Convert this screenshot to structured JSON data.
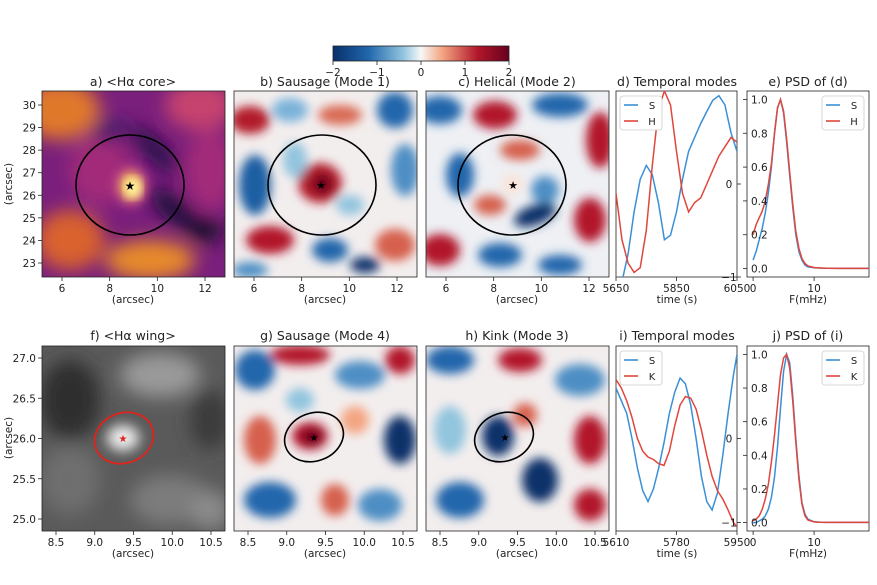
{
  "colorbar": {
    "ticks": [
      "−2",
      "−1",
      "0",
      "1",
      "2"
    ],
    "range": [
      -2,
      2
    ],
    "colors": [
      "#08306b",
      "#2166ac",
      "#92c5de",
      "#f7f7f7",
      "#f4a582",
      "#b2182b",
      "#67001f"
    ]
  },
  "row1": {
    "panels": [
      {
        "title": "a) <Hα core>",
        "kind": "core"
      },
      {
        "title": "b) Sausage (Mode 1)",
        "kind": "mode"
      },
      {
        "title": "c) Helical (Mode 2)",
        "kind": "mode"
      }
    ],
    "xticks": [
      "6",
      "8",
      "10",
      "12"
    ],
    "xlabel": "(arcsec)",
    "yticks": [
      "30",
      "29",
      "28",
      "27",
      "26",
      "25",
      "24",
      "23"
    ],
    "ylabel": "(arcsec)",
    "temporal": {
      "title": "d) Temporal modes",
      "xticks": [
        "5650",
        "5850",
        "6050"
      ],
      "xlabel": "time (s)",
      "yticks": [
        "0",
        "−1"
      ],
      "legend": [
        "S",
        "H"
      ]
    },
    "psd": {
      "title": "e) PSD of (d)",
      "xticks": [
        "0",
        "10"
      ],
      "xlabel": "F(mHz)",
      "yticks": [
        "1.0",
        "0.8",
        "0.6",
        "0.4",
        "0.2",
        "0.0"
      ],
      "legend": [
        "S",
        "H"
      ]
    }
  },
  "row2": {
    "panels": [
      {
        "title": "f) <Hα wing>",
        "kind": "wing"
      },
      {
        "title": "g) Sausage (Mode 4)",
        "kind": "mode"
      },
      {
        "title": "h) Kink (Mode 3)",
        "kind": "mode"
      }
    ],
    "xticks": [
      "8.5",
      "9.0",
      "9.5",
      "10.0",
      "10.5"
    ],
    "xlabel": "(arcsec)",
    "yticks": [
      "27.0",
      "26.5",
      "26.0",
      "25.5",
      "25.0"
    ],
    "ylabel": "(arcsec)",
    "temporal": {
      "title": "i) Temporal modes",
      "xticks": [
        "5610",
        "5780",
        "5950"
      ],
      "xlabel": "time (s)",
      "yticks": [
        "0",
        "−1"
      ],
      "legend": [
        "S",
        "K"
      ]
    },
    "psd": {
      "title": "j) PSD of (i)",
      "xticks": [
        "0",
        "10"
      ],
      "xlabel": "F(mHz)",
      "yticks": [
        "1.0",
        "0.8",
        "0.6",
        "0.4",
        "0.2",
        "0.0"
      ],
      "legend": [
        "S",
        "K"
      ]
    }
  },
  "series_colors": {
    "blue": "#3b8fd6",
    "red": "#e0463c"
  },
  "chart_data": [
    {
      "type": "line",
      "title": "d) Temporal modes",
      "xlabel": "time (s)",
      "xlim": [
        5650,
        6050
      ],
      "ylim": [
        -1,
        1
      ],
      "series": [
        {
          "name": "S",
          "x": [
            5650,
            5670,
            5690,
            5710,
            5730,
            5750,
            5770,
            5790,
            5810,
            5830,
            5850,
            5870,
            5890,
            5910,
            5930,
            5950,
            5970,
            5990,
            6010,
            6030,
            6050
          ],
          "values": [
            -1.0,
            -1.05,
            -0.75,
            -0.3,
            0.05,
            0.2,
            0.1,
            -0.2,
            -0.6,
            -0.55,
            -0.3,
            0.05,
            0.35,
            0.5,
            0.65,
            0.78,
            0.9,
            0.95,
            0.85,
            0.55,
            0.35
          ]
        },
        {
          "name": "H",
          "x": [
            5650,
            5670,
            5690,
            5710,
            5730,
            5750,
            5770,
            5790,
            5810,
            5830,
            5850,
            5870,
            5890,
            5910,
            5930,
            5950,
            5970,
            5990,
            6010,
            6030,
            6050
          ],
          "values": [
            -0.1,
            -0.6,
            -0.85,
            -0.95,
            -0.9,
            -0.5,
            0.2,
            0.8,
            1.0,
            0.85,
            0.35,
            -0.1,
            -0.3,
            -0.2,
            -0.15,
            0.0,
            0.15,
            0.3,
            0.4,
            0.5,
            0.45
          ]
        }
      ]
    },
    {
      "type": "line",
      "title": "e) PSD of (d)",
      "xlabel": "F(mHz)",
      "xlim": [
        -1,
        19
      ],
      "ylim": [
        -0.05,
        1.05
      ],
      "series": [
        {
          "name": "S",
          "x": [
            0,
            0.5,
            1,
            1.5,
            2,
            2.5,
            3,
            3.5,
            4,
            4.5,
            5,
            5.5,
            6,
            6.5,
            7,
            7.5,
            8,
            8.5,
            9,
            10,
            11,
            12,
            14,
            16,
            18,
            19
          ],
          "values": [
            0.05,
            0.1,
            0.17,
            0.24,
            0.33,
            0.45,
            0.6,
            0.8,
            0.95,
            1.0,
            0.92,
            0.75,
            0.55,
            0.36,
            0.2,
            0.1,
            0.05,
            0.02,
            0.01,
            0.005,
            0.003,
            0.002,
            0.001,
            0.001,
            0.001,
            0.001
          ]
        },
        {
          "name": "H",
          "x": [
            0,
            0.5,
            1,
            1.5,
            2,
            2.5,
            3,
            3.5,
            4,
            4.5,
            5,
            5.5,
            6,
            6.5,
            7,
            7.5,
            8,
            8.5,
            9,
            10,
            11,
            12,
            14,
            16,
            18,
            19
          ],
          "values": [
            0.2,
            0.26,
            0.3,
            0.34,
            0.4,
            0.5,
            0.62,
            0.8,
            0.95,
            1.0,
            0.93,
            0.77,
            0.57,
            0.38,
            0.22,
            0.12,
            0.06,
            0.03,
            0.015,
            0.006,
            0.003,
            0.002,
            0.001,
            0.001,
            0.001,
            0.001
          ]
        }
      ]
    },
    {
      "type": "line",
      "title": "i) Temporal modes",
      "xlabel": "time (s)",
      "xlim": [
        5610,
        5950
      ],
      "ylim": [
        -1.1,
        1.1
      ],
      "series": [
        {
          "name": "S",
          "x": [
            5610,
            5625,
            5640,
            5655,
            5670,
            5685,
            5700,
            5715,
            5730,
            5745,
            5760,
            5775,
            5790,
            5805,
            5820,
            5835,
            5850,
            5865,
            5880,
            5895,
            5910,
            5925,
            5940,
            5950
          ],
          "values": [
            0.6,
            0.45,
            0.3,
            0.0,
            -0.35,
            -0.62,
            -0.75,
            -0.6,
            -0.35,
            -0.05,
            0.3,
            0.55,
            0.72,
            0.65,
            0.4,
            0.0,
            -0.45,
            -0.75,
            -0.85,
            -0.65,
            -0.2,
            0.3,
            0.75,
            1.0
          ]
        },
        {
          "name": "K",
          "x": [
            5610,
            5625,
            5640,
            5655,
            5670,
            5685,
            5700,
            5715,
            5730,
            5745,
            5760,
            5775,
            5790,
            5805,
            5820,
            5835,
            5850,
            5865,
            5880,
            5895,
            5910,
            5925,
            5940,
            5950
          ],
          "values": [
            0.7,
            0.6,
            0.45,
            0.25,
            0.0,
            -0.15,
            -0.22,
            -0.25,
            -0.3,
            -0.32,
            -0.15,
            0.15,
            0.4,
            0.5,
            0.48,
            0.35,
            0.1,
            -0.2,
            -0.45,
            -0.62,
            -0.72,
            -0.85,
            -1.0,
            -1.05
          ]
        }
      ]
    },
    {
      "type": "line",
      "title": "j) PSD of (i)",
      "xlabel": "F(mHz)",
      "xlim": [
        -1,
        19
      ],
      "ylim": [
        -0.05,
        1.05
      ],
      "series": [
        {
          "name": "S",
          "x": [
            0,
            0.5,
            1,
            1.5,
            2,
            2.5,
            3,
            3.5,
            4,
            4.5,
            5,
            5.5,
            6,
            6.5,
            7,
            7.5,
            8,
            8.5,
            9,
            10,
            11,
            12,
            14,
            16,
            18,
            19
          ],
          "values": [
            0.0,
            0.0,
            0.01,
            0.02,
            0.04,
            0.08,
            0.15,
            0.27,
            0.45,
            0.68,
            0.9,
            1.0,
            0.95,
            0.75,
            0.5,
            0.28,
            0.12,
            0.05,
            0.02,
            0.005,
            0.002,
            0.001,
            0.001,
            0.001,
            0.001,
            0.001
          ]
        },
        {
          "name": "K",
          "x": [
            0,
            0.5,
            1,
            1.5,
            2,
            2.5,
            3,
            3.5,
            4,
            4.5,
            5,
            5.5,
            6,
            6.5,
            7,
            7.5,
            8,
            8.5,
            9,
            10,
            11,
            12,
            14,
            16,
            18,
            19
          ],
          "values": [
            0.01,
            0.02,
            0.04,
            0.08,
            0.14,
            0.23,
            0.36,
            0.52,
            0.7,
            0.88,
            0.98,
            1.0,
            0.92,
            0.72,
            0.48,
            0.26,
            0.11,
            0.04,
            0.015,
            0.004,
            0.002,
            0.001,
            0.001,
            0.001,
            0.001,
            0.001
          ]
        }
      ]
    }
  ]
}
